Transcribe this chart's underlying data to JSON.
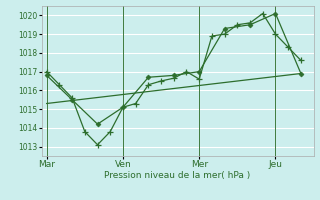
{
  "xlabel": "Pression niveau de la mer( hPa )",
  "background_color": "#cceeed",
  "grid_color": "#ffffff",
  "line_color": "#2d6e2d",
  "ylim": [
    1012.5,
    1020.5
  ],
  "yticks": [
    1013,
    1014,
    1015,
    1016,
    1017,
    1018,
    1019,
    1020
  ],
  "xtick_labels": [
    "Mar",
    "Ven",
    "Mer",
    "Jeu"
  ],
  "xtick_positions": [
    0,
    3,
    6,
    9
  ],
  "xlim": [
    -0.2,
    10.5
  ],
  "line1_x": [
    0,
    0.5,
    1.0,
    1.5,
    2.0,
    2.5,
    3.0,
    3.5,
    4.0,
    4.5,
    5.0,
    5.5,
    6.0,
    6.5,
    7.0,
    7.5,
    8.0,
    8.5,
    9.0,
    9.5,
    10.0
  ],
  "line1_y": [
    1017.0,
    1016.3,
    1015.6,
    1013.8,
    1013.1,
    1013.8,
    1015.1,
    1015.3,
    1016.3,
    1016.5,
    1016.65,
    1017.0,
    1016.6,
    1018.9,
    1019.0,
    1019.5,
    1019.6,
    1020.1,
    1019.0,
    1018.3,
    1017.6
  ],
  "line2_x": [
    0,
    1,
    2,
    3,
    4,
    5,
    6,
    7,
    8,
    9,
    10
  ],
  "line2_y": [
    1016.8,
    1015.5,
    1014.2,
    1015.1,
    1016.7,
    1016.8,
    1017.0,
    1019.3,
    1019.5,
    1020.1,
    1016.9
  ],
  "line3_x": [
    0,
    10
  ],
  "line3_y": [
    1015.3,
    1016.9
  ]
}
